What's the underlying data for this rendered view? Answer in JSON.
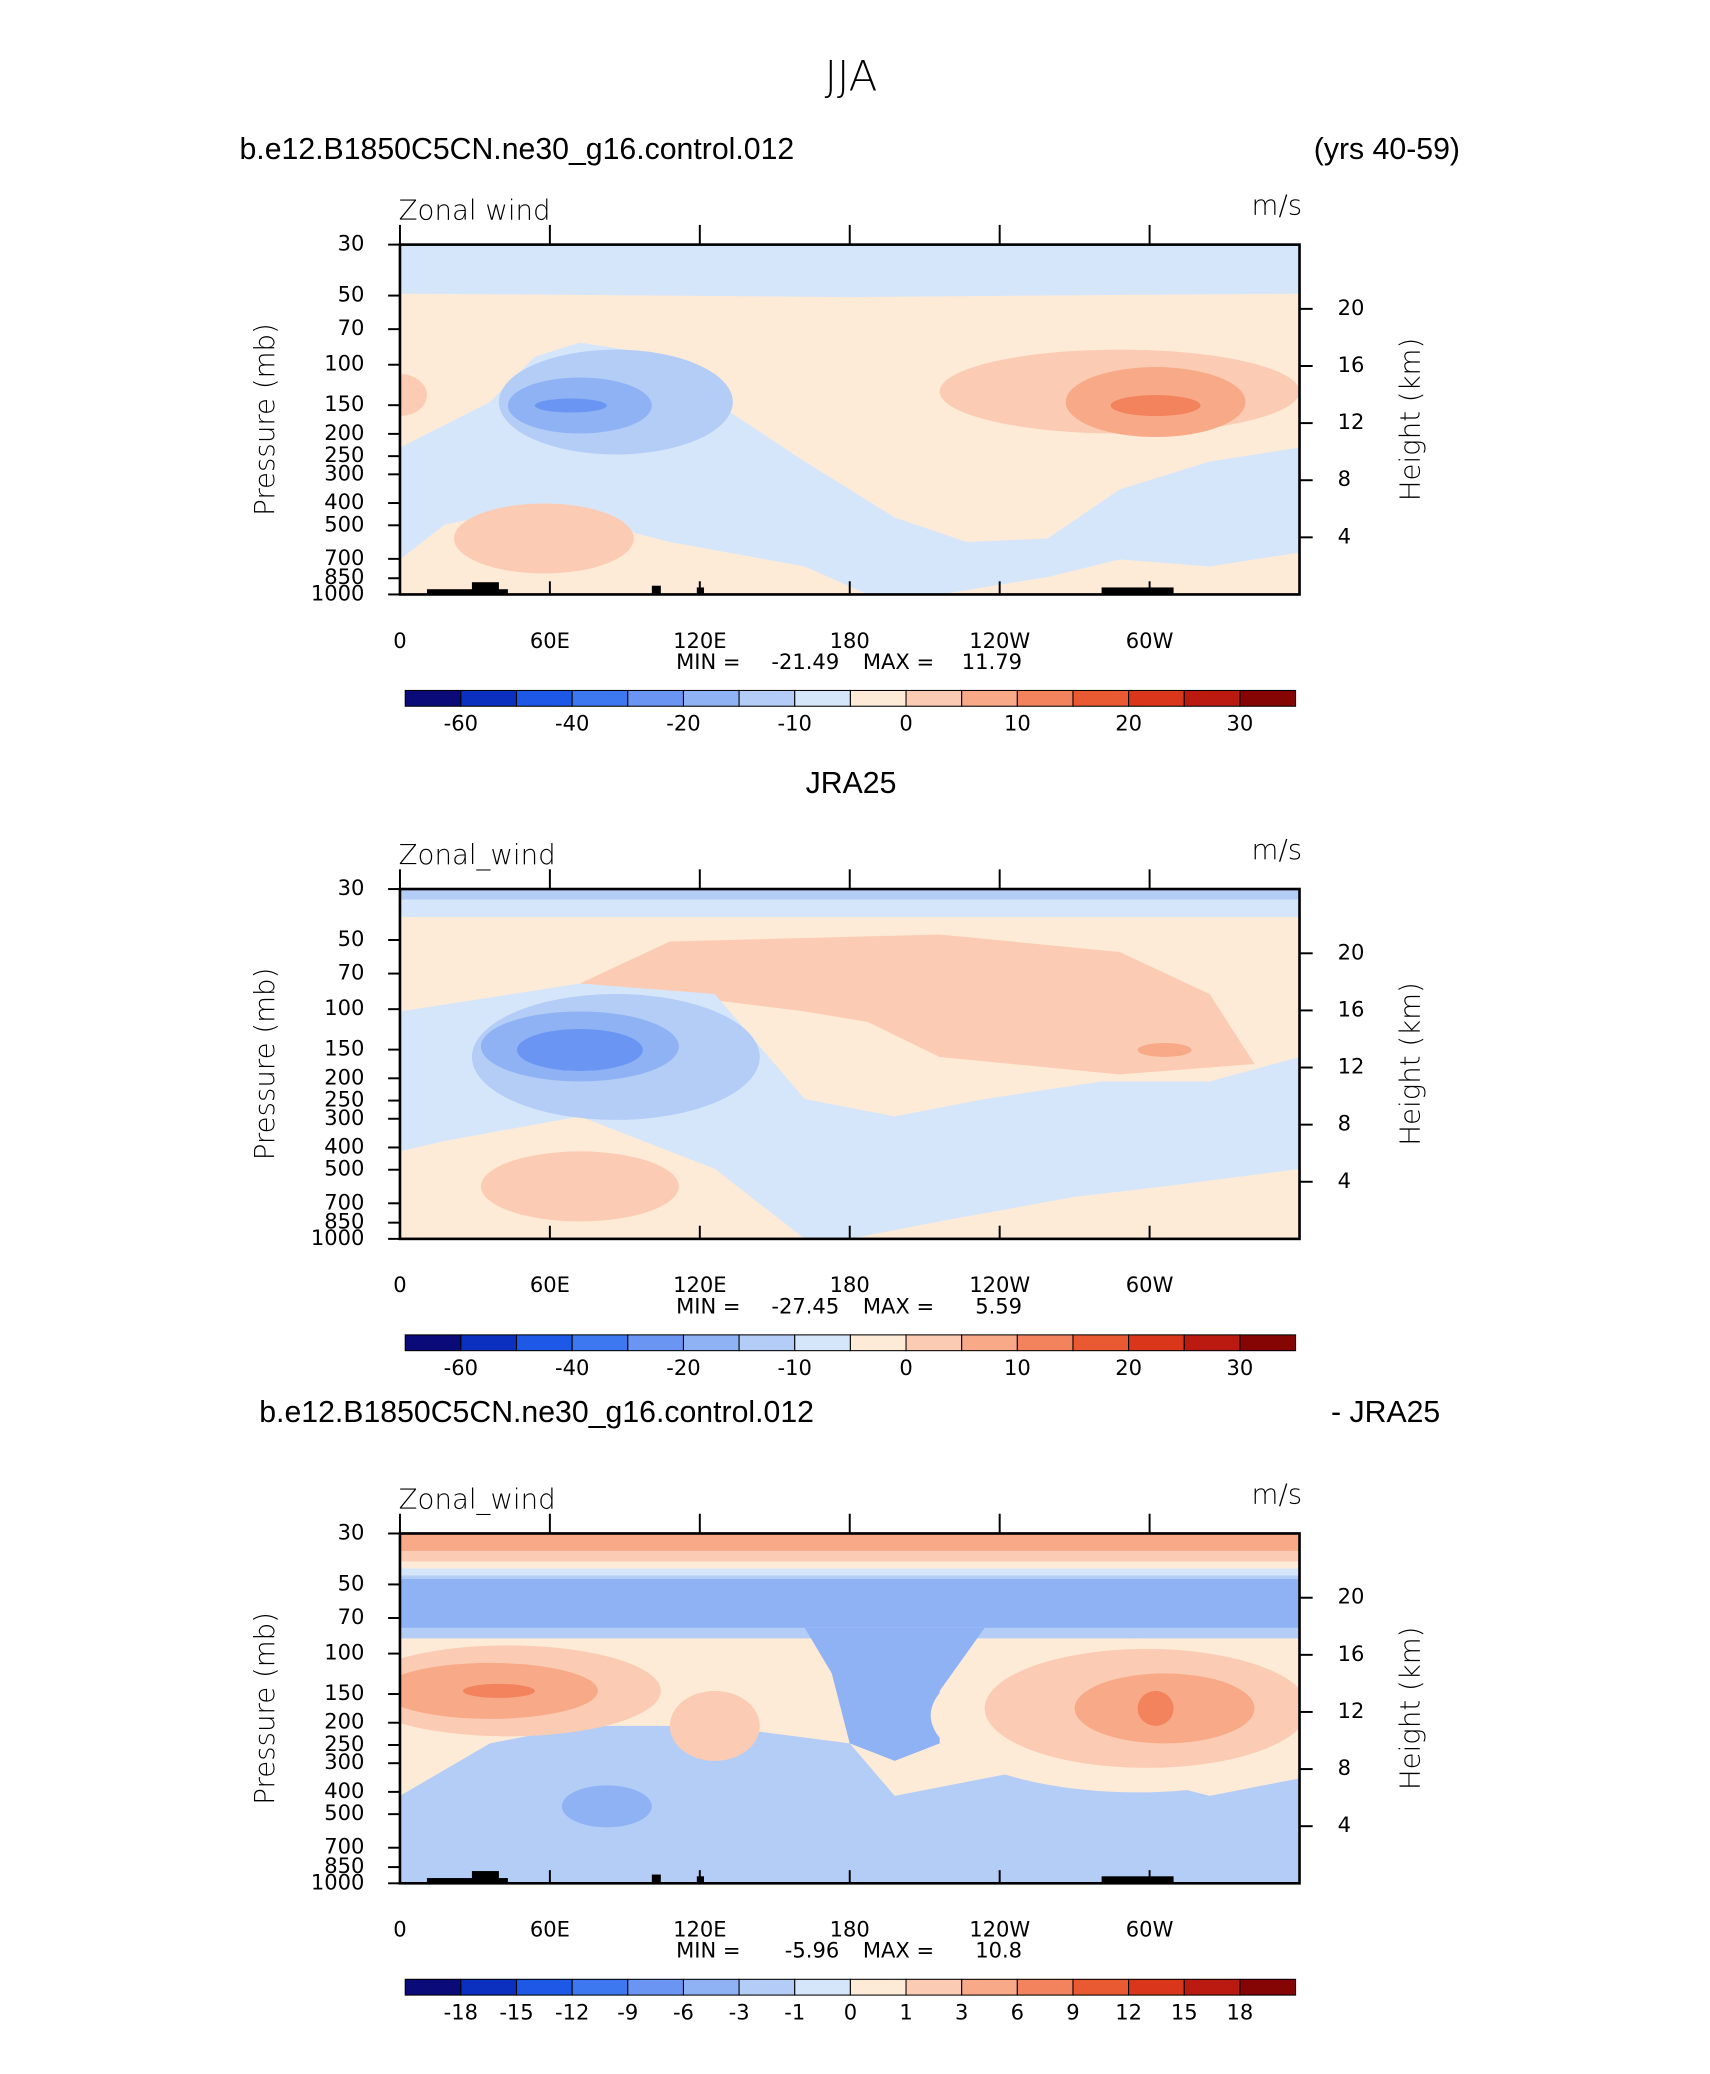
{
  "title": "JJA",
  "chart_data": [
    {
      "type": "contour",
      "header_left": "b.e12.B1850C5CN.ne30_g16.control.012",
      "header_right": "(yrs 40-59)",
      "field_label": "Zonal wind",
      "units": "m/s",
      "ylabel": "Pressure (mb)",
      "y2label": "Height (km)",
      "xlim": [
        0,
        360
      ],
      "xticks": [
        0,
        {
          "value": 60,
          "label": "60E"
        },
        {
          "value": 120,
          "label": "120E"
        },
        180,
        {
          "value": 240,
          "label": "120W"
        },
        {
          "value": 300,
          "label": "60W"
        }
      ],
      "ylim": [
        1000,
        30
      ],
      "log_y": true,
      "yticks": [
        30,
        50,
        70,
        100,
        150,
        200,
        250,
        300,
        400,
        500,
        700,
        850,
        1000
      ],
      "y2lim": [
        0,
        24.5
      ],
      "y2ticks": [
        4,
        8,
        12,
        16,
        20
      ],
      "stats": {
        "min_label": "MIN =",
        "min": -21.49,
        "max_label": "MAX =",
        "max": 11.79
      },
      "colorbar": {
        "colors": [
          "#0a0a78",
          "#0b2fbf",
          "#1e58e6",
          "#3d78f0",
          "#6a95f3",
          "#8fb2f5",
          "#b4cdf7",
          "#d6e6fa",
          "#fdebd8",
          "#fbccb3",
          "#f8aa88",
          "#f2835d",
          "#e95a32",
          "#d9361b",
          "#bb1a10",
          "#850404"
        ],
        "ticks": [
          -60,
          -40,
          -20,
          -10,
          0,
          10,
          20,
          30
        ]
      }
    },
    {
      "type": "contour",
      "header_center": "JRA25",
      "field_label": "Zonal_wind",
      "units": "m/s",
      "ylabel": "Pressure (mb)",
      "y2label": "Height (km)",
      "xlim": [
        0,
        360
      ],
      "xticks": [
        0,
        {
          "value": 60,
          "label": "60E"
        },
        {
          "value": 120,
          "label": "120E"
        },
        180,
        {
          "value": 240,
          "label": "120W"
        },
        {
          "value": 300,
          "label": "60W"
        }
      ],
      "ylim": [
        1000,
        30
      ],
      "log_y": true,
      "yticks": [
        30,
        50,
        70,
        100,
        150,
        200,
        250,
        300,
        400,
        500,
        700,
        850,
        1000
      ],
      "y2lim": [
        0,
        24.5
      ],
      "y2ticks": [
        4,
        8,
        12,
        16,
        20
      ],
      "stats": {
        "min_label": "MIN =",
        "min": -27.45,
        "max_label": "MAX =",
        "max": 5.59
      },
      "colorbar": {
        "colors": [
          "#0a0a78",
          "#0b2fbf",
          "#1e58e6",
          "#3d78f0",
          "#6a95f3",
          "#8fb2f5",
          "#b4cdf7",
          "#d6e6fa",
          "#fdebd8",
          "#fbccb3",
          "#f8aa88",
          "#f2835d",
          "#e95a32",
          "#d9361b",
          "#bb1a10",
          "#850404"
        ],
        "ticks": [
          -60,
          -40,
          -20,
          -10,
          0,
          10,
          20,
          30
        ]
      }
    },
    {
      "type": "contour",
      "header_left": "b.e12.B1850C5CN.ne30_g16.control.012",
      "header_right": "- JRA25",
      "field_label": "Zonal_wind",
      "units": "m/s",
      "ylabel": "Pressure (mb)",
      "y2label": "Height (km)",
      "xlim": [
        0,
        360
      ],
      "xticks": [
        0,
        {
          "value": 60,
          "label": "60E"
        },
        {
          "value": 120,
          "label": "120E"
        },
        180,
        {
          "value": 240,
          "label": "120W"
        },
        {
          "value": 300,
          "label": "60W"
        }
      ],
      "ylim": [
        1000,
        30
      ],
      "log_y": true,
      "yticks": [
        30,
        50,
        70,
        100,
        150,
        200,
        250,
        300,
        400,
        500,
        700,
        850,
        1000
      ],
      "y2lim": [
        0,
        24.5
      ],
      "y2ticks": [
        4,
        8,
        12,
        16,
        20
      ],
      "stats": {
        "min_label": "MIN =",
        "min": -5.96,
        "max_label": "MAX =",
        "max": 10.8
      },
      "colorbar": {
        "colors": [
          "#0a0a78",
          "#0b2fbf",
          "#1e58e6",
          "#3d78f0",
          "#6a95f3",
          "#8fb2f5",
          "#b4cdf7",
          "#d6e6fa",
          "#fdebd8",
          "#fbccb3",
          "#f8aa88",
          "#f2835d",
          "#e95a32",
          "#d9361b",
          "#bb1a10",
          "#850404"
        ],
        "ticks": [
          -18,
          -15,
          -12,
          -9,
          -6,
          -3,
          -1,
          0,
          1,
          3,
          6,
          9,
          12,
          15,
          18
        ]
      }
    }
  ]
}
